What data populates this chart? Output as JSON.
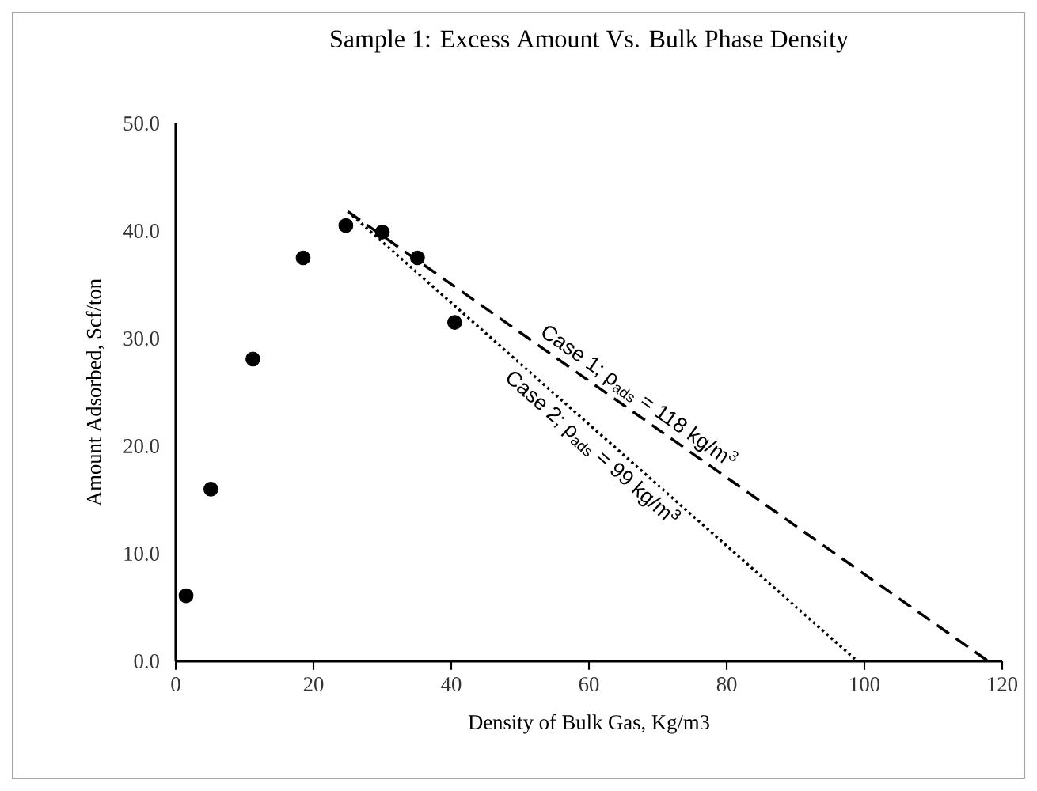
{
  "chart_data": {
    "type": "scatter",
    "title": "Sample 1: Excess Amount Vs. Bulk Phase Density",
    "xlabel": "Density of Bulk Gas, Kg/m3",
    "ylabel": "Amount Adsorbed, Scf/ton",
    "xlim": [
      0,
      120
    ],
    "ylim": [
      0,
      50
    ],
    "xticks": [
      0,
      20,
      40,
      60,
      80,
      100,
      120
    ],
    "yticks": [
      {
        "value": 0,
        "label": "0.0"
      },
      {
        "value": 10,
        "label": "10.0"
      },
      {
        "value": 20,
        "label": "20.0"
      },
      {
        "value": 30,
        "label": "30.0"
      },
      {
        "value": 40,
        "label": "40.0"
      },
      {
        "value": 50,
        "label": "50.0"
      }
    ],
    "grid": false,
    "series": [
      {
        "color": "#000000",
        "marker": "circle",
        "x": [
          1.5,
          5.1,
          11.2,
          18.5,
          24.7,
          30.0,
          35.1,
          40.5
        ],
        "values": [
          6.1,
          16.0,
          28.1,
          37.5,
          40.5,
          39.9,
          37.5,
          31.5
        ]
      },
      {
        "type": "line",
        "color": "#000000",
        "marker": "none",
        "line_style": "dashed",
        "x": [
          25,
          118
        ],
        "values": [
          41.8,
          0
        ]
      },
      {
        "type": "line",
        "color": "#000000",
        "marker": "none",
        "line_style": "dotted",
        "x": [
          25,
          99
        ],
        "values": [
          41.8,
          0
        ]
      }
    ],
    "annotations": [
      "Case 1; ρ$_{ads}$ = 118 kg/m$^{3}$",
      "Case 2; ρ$_{ads}$ = 99 kg/m$^{3}$"
    ]
  }
}
